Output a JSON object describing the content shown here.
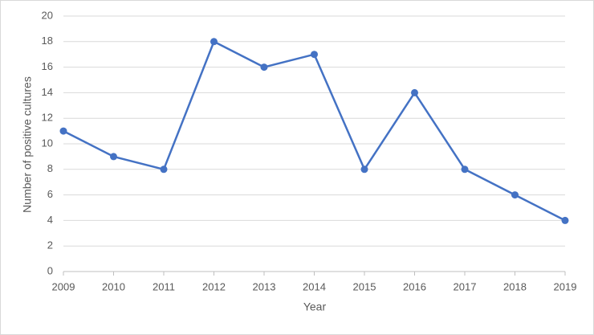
{
  "chart_data": {
    "type": "line",
    "x_label": "Year",
    "y_label": "Number of positive cultures",
    "x": [
      2009,
      2010,
      2011,
      2012,
      2013,
      2014,
      2015,
      2016,
      2017,
      2018,
      2019
    ],
    "series": [
      {
        "name": "Positive cultures",
        "color": "#4472c4",
        "values": [
          11,
          9,
          8,
          18,
          16,
          17,
          8,
          14,
          8,
          6,
          4
        ]
      }
    ],
    "xlim": [
      2009,
      2019
    ],
    "xticks": [
      2009,
      2010,
      2011,
      2012,
      2013,
      2014,
      2015,
      2016,
      2017,
      2018,
      2019
    ],
    "ylim": [
      0,
      20
    ],
    "yticks": [
      0,
      2,
      4,
      6,
      8,
      10,
      12,
      14,
      16,
      18,
      20
    ],
    "grid": true,
    "legend": false
  }
}
